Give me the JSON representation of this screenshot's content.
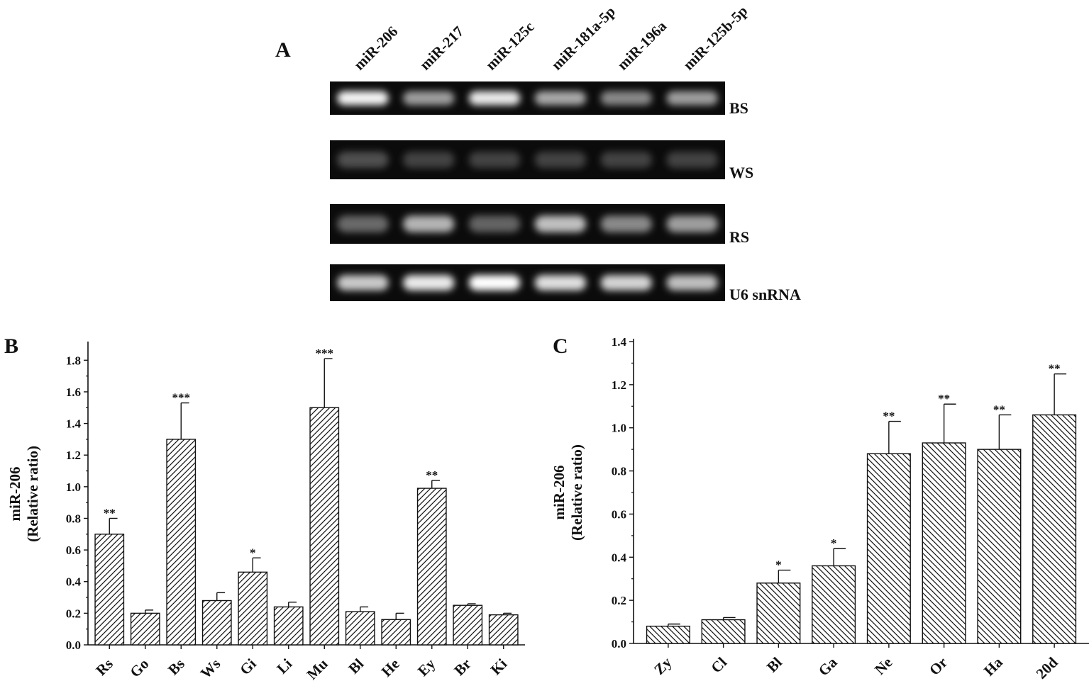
{
  "panel_a": {
    "label": "A",
    "lanes": [
      "miR-206",
      "miR-217",
      "miR-125c",
      "miR-181a-5p",
      "miR-196a",
      "miR-125b-5p"
    ],
    "rows": [
      {
        "label": "BS",
        "intensity": [
          0.95,
          0.55,
          0.9,
          0.6,
          0.45,
          0.55
        ]
      },
      {
        "label": "WS",
        "intensity": [
          0.18,
          0.12,
          0.12,
          0.12,
          0.12,
          0.12
        ]
      },
      {
        "label": "RS",
        "intensity": [
          0.3,
          0.65,
          0.28,
          0.7,
          0.45,
          0.55
        ]
      },
      {
        "label": "U6 snRNA",
        "intensity": [
          0.75,
          0.9,
          1.0,
          0.85,
          0.8,
          0.7
        ]
      }
    ]
  },
  "chart_data": [
    {
      "panel": "B",
      "type": "bar",
      "ylabel_lines": [
        "miR-206",
        "(Relative ratio)"
      ],
      "categories": [
        "Rs",
        "Go",
        "Bs",
        "Ws",
        "Gi",
        "Li",
        "Mu",
        "Bl",
        "He",
        "Ey",
        "Br",
        "Ki"
      ],
      "values": [
        0.7,
        0.2,
        1.3,
        0.28,
        0.46,
        0.24,
        1.5,
        0.21,
        0.16,
        0.99,
        0.25,
        0.19
      ],
      "errors": [
        0.1,
        0.02,
        0.23,
        0.05,
        0.09,
        0.03,
        0.31,
        0.03,
        0.04,
        0.05,
        0.01,
        0.01
      ],
      "significance": [
        "**",
        "",
        "***",
        "",
        "*",
        "",
        "***",
        "",
        "",
        "**",
        "",
        ""
      ],
      "ylim": [
        0,
        1.9
      ],
      "yticks": [
        0.0,
        0.2,
        0.4,
        0.6,
        0.8,
        1.0,
        1.2,
        1.4,
        1.6,
        1.8
      ],
      "ytick_labels": [
        "0.0",
        "0.2",
        "0.4",
        "0.6",
        "0.8",
        "1.0",
        "1.2",
        "1.4",
        "1.6",
        "1.8"
      ],
      "hatch": "forward-diagonal",
      "grid": false
    },
    {
      "panel": "C",
      "type": "bar",
      "ylabel_lines": [
        "miR-206",
        "(Relative ratio)"
      ],
      "categories": [
        "Zy",
        "Cl",
        "Bl",
        "Ga",
        "Ne",
        "Or",
        "Ha",
        "20d"
      ],
      "values": [
        0.08,
        0.11,
        0.28,
        0.36,
        0.88,
        0.93,
        0.9,
        1.06
      ],
      "errors": [
        0.01,
        0.01,
        0.06,
        0.08,
        0.15,
        0.18,
        0.16,
        0.19
      ],
      "significance": [
        "",
        "",
        "*",
        "*",
        "**",
        "**",
        "**",
        "**"
      ],
      "ylim": [
        0,
        1.4
      ],
      "yticks": [
        0.0,
        0.2,
        0.4,
        0.6,
        0.8,
        1.0,
        1.2,
        1.4
      ],
      "ytick_labels": [
        "0.0",
        "0.2",
        "0.4",
        "0.6",
        "0.8",
        "1.0",
        "1.2",
        "1.4"
      ],
      "hatch": "back-diagonal",
      "grid": false
    }
  ]
}
